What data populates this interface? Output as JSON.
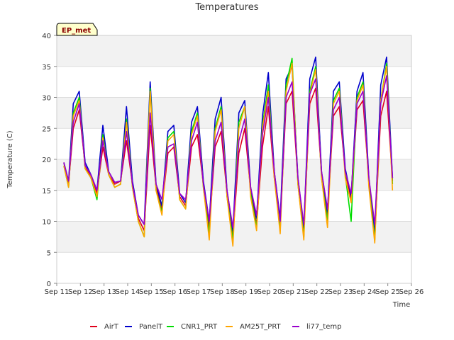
{
  "site_badge": "EP_met",
  "chart_data": {
    "type": "line",
    "title": "Temperatures",
    "xlabel": "Time",
    "ylabel": "Temperature (C)",
    "ylim": [
      0,
      40
    ],
    "y_ticks": [
      0,
      5,
      10,
      15,
      20,
      25,
      30,
      35,
      40
    ],
    "xlim": [
      11,
      26
    ],
    "x_ticks": [
      11,
      12,
      13,
      14,
      15,
      16,
      17,
      18,
      19,
      20,
      21,
      22,
      23,
      24,
      25,
      26
    ],
    "x_tick_labels": [
      "Sep 11",
      "Sep 12",
      "Sep 13",
      "Sep 14",
      "Sep 15",
      "Sep 16",
      "Sep 17",
      "Sep 18",
      "Sep 19",
      "Sep 20",
      "Sep 21",
      "Sep 22",
      "Sep 23",
      "Sep 24",
      "Sep 25",
      "Sep 26"
    ],
    "grid": true,
    "band_shading": true,
    "legend_position": "bottom",
    "x": [
      11.3,
      11.5,
      11.7,
      11.95,
      12.2,
      12.45,
      12.7,
      12.95,
      13.2,
      13.45,
      13.7,
      13.95,
      14.2,
      14.45,
      14.7,
      14.95,
      15.2,
      15.45,
      15.7,
      15.95,
      16.2,
      16.45,
      16.7,
      16.95,
      17.2,
      17.45,
      17.7,
      17.95,
      18.2,
      18.45,
      18.7,
      18.95,
      19.2,
      19.45,
      19.7,
      19.95,
      20.2,
      20.45,
      20.7,
      20.95,
      21.2,
      21.45,
      21.7,
      21.95,
      22.2,
      22.45,
      22.7,
      22.95,
      23.2,
      23.45,
      23.7,
      23.95,
      24.2,
      24.45,
      24.7,
      24.95,
      25.2
    ],
    "series": [
      {
        "name": "AirT",
        "color": "#e0001b",
        "values": [
          19.5,
          16.0,
          25.0,
          28.0,
          19.0,
          17.0,
          14.5,
          22.0,
          17.5,
          16.0,
          16.5,
          23.0,
          16.0,
          10.5,
          8.5,
          25.5,
          15.5,
          12.0,
          21.0,
          22.0,
          14.0,
          12.5,
          22.0,
          24.0,
          16.0,
          9.0,
          22.0,
          24.5,
          14.5,
          7.5,
          21.0,
          25.0,
          15.0,
          9.5,
          22.0,
          28.5,
          17.0,
          9.5,
          29.0,
          31.0,
          16.5,
          8.5,
          29.0,
          31.5,
          17.5,
          11.0,
          27.0,
          28.5,
          18.0,
          13.5,
          28.0,
          29.5,
          16.5,
          7.5,
          27.0,
          31.0,
          16.5
        ]
      },
      {
        "name": "PanelT",
        "color": "#0000cc",
        "values": [
          19.5,
          16.5,
          29.0,
          31.0,
          19.5,
          17.5,
          15.0,
          25.5,
          18.0,
          16.3,
          16.5,
          28.5,
          16.5,
          11.0,
          9.5,
          32.5,
          16.0,
          12.5,
          24.5,
          25.5,
          14.5,
          13.0,
          26.0,
          28.5,
          16.5,
          10.0,
          26.5,
          30.0,
          15.0,
          8.5,
          27.5,
          29.5,
          15.5,
          10.5,
          27.0,
          34.0,
          18.0,
          10.5,
          33.0,
          35.0,
          17.0,
          9.0,
          33.0,
          36.5,
          18.0,
          11.5,
          31.0,
          32.5,
          18.5,
          14.0,
          31.0,
          34.0,
          17.0,
          8.0,
          32.0,
          36.5,
          17.0
        ]
      },
      {
        "name": "CNR1_PRT",
        "color": "#00dd00",
        "values": [
          19.0,
          15.5,
          27.5,
          30.0,
          18.5,
          17.0,
          13.5,
          24.0,
          17.5,
          15.5,
          16.0,
          26.5,
          15.5,
          10.0,
          7.5,
          31.5,
          15.0,
          11.5,
          23.5,
          24.5,
          13.5,
          12.0,
          24.5,
          27.5,
          15.5,
          8.0,
          25.0,
          28.5,
          14.0,
          7.0,
          26.0,
          28.5,
          14.5,
          9.0,
          25.5,
          32.0,
          17.5,
          8.5,
          32.0,
          36.3,
          16.0,
          7.5,
          31.0,
          35.0,
          17.0,
          10.0,
          29.5,
          31.5,
          17.5,
          10.0,
          30.0,
          32.5,
          16.0,
          7.0,
          29.5,
          35.5,
          16.0
        ]
      },
      {
        "name": "AM25T_PRT",
        "color": "#ffa500",
        "values": [
          19.0,
          15.5,
          27.0,
          29.5,
          18.5,
          17.0,
          14.0,
          23.5,
          17.5,
          15.5,
          16.0,
          26.0,
          15.5,
          10.0,
          7.5,
          31.0,
          15.0,
          11.0,
          23.0,
          24.0,
          13.5,
          12.0,
          24.0,
          27.0,
          15.5,
          7.0,
          24.5,
          28.0,
          14.0,
          6.0,
          25.0,
          28.5,
          14.0,
          8.5,
          25.0,
          31.0,
          17.0,
          8.0,
          31.0,
          35.5,
          16.0,
          7.0,
          30.5,
          34.5,
          17.0,
          9.0,
          29.0,
          31.0,
          17.0,
          13.0,
          29.5,
          32.0,
          15.5,
          6.5,
          29.5,
          35.0,
          15.0
        ]
      },
      {
        "name": "li77_temp",
        "color": "#9900cc",
        "values": [
          19.5,
          16.5,
          26.0,
          29.0,
          19.0,
          17.5,
          15.0,
          23.0,
          18.0,
          16.3,
          16.5,
          24.5,
          16.0,
          11.0,
          9.5,
          27.5,
          16.0,
          13.5,
          22.0,
          22.5,
          14.5,
          13.5,
          23.0,
          26.0,
          16.0,
          10.0,
          23.0,
          26.0,
          15.0,
          9.0,
          23.0,
          26.5,
          15.5,
          11.0,
          24.0,
          30.0,
          18.0,
          10.0,
          30.0,
          32.5,
          17.0,
          9.5,
          30.5,
          33.0,
          18.0,
          12.0,
          28.0,
          30.0,
          18.0,
          14.5,
          29.0,
          31.0,
          17.0,
          9.5,
          29.0,
          33.5,
          17.0
        ]
      }
    ]
  }
}
